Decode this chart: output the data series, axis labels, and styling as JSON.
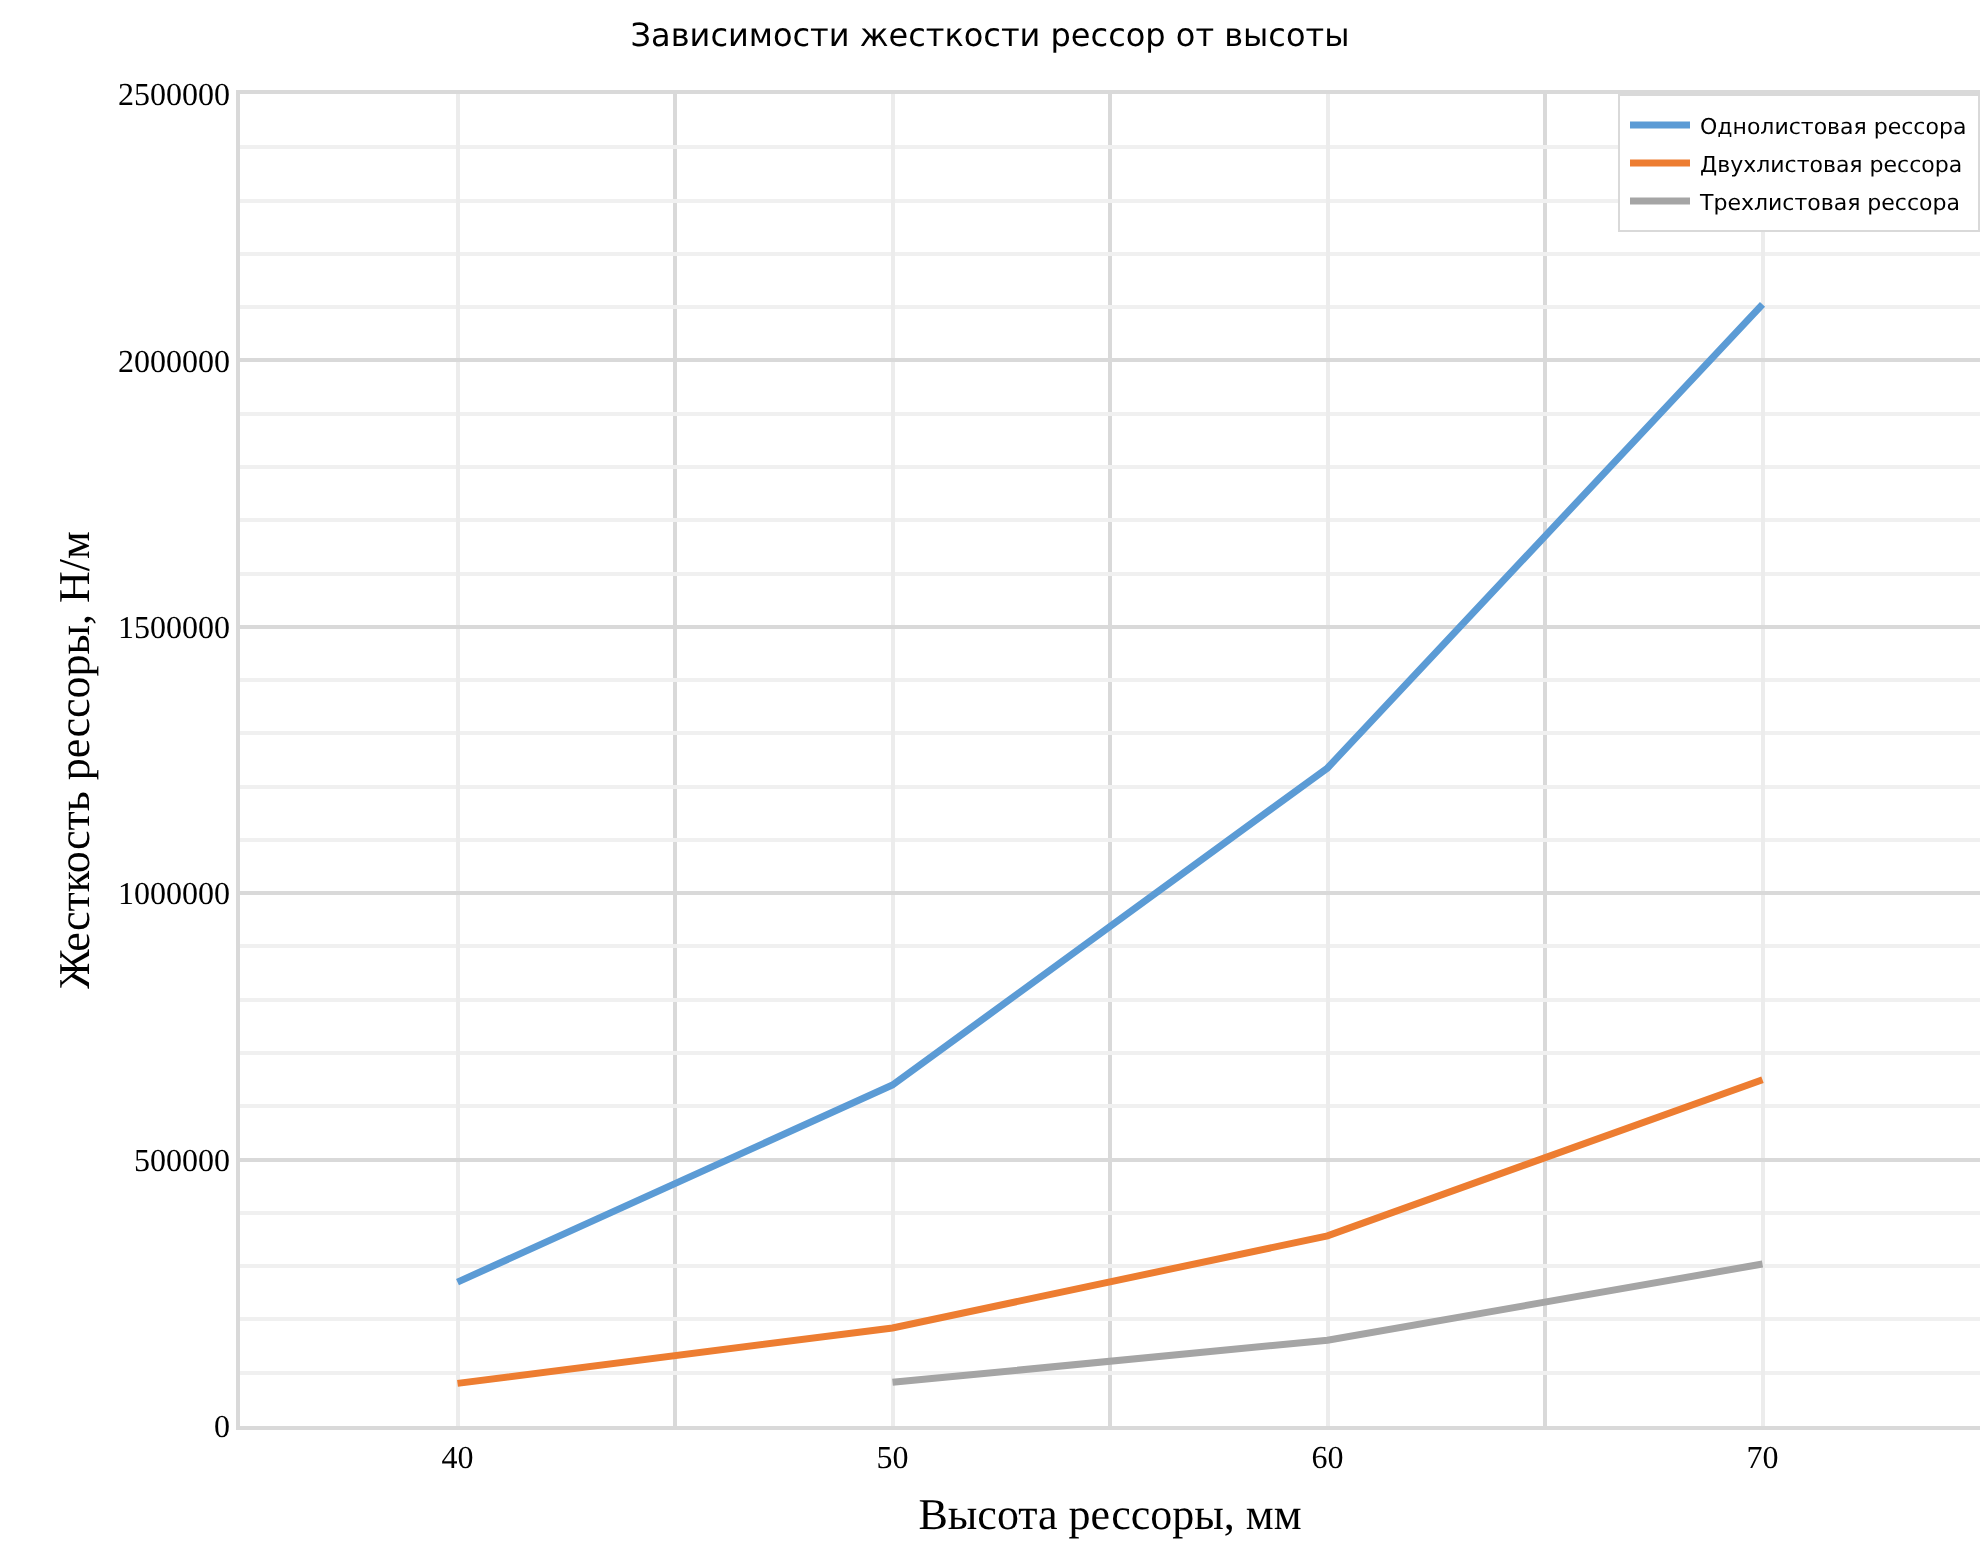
{
  "chart_data": {
    "type": "line",
    "title": "Зависимости жесткости рессор от высоты",
    "xlabel": "Высота рессоры, мм",
    "ylabel": "Жесткость рессоры, Н/м",
    "x": [
      40,
      50,
      60,
      70
    ],
    "series": [
      {
        "name": "Однолистовая рессора",
        "color": "#5b9bd5",
        "values": [
          270000,
          640000,
          1235000,
          2105000
        ]
      },
      {
        "name": "Двухлистовая рессора",
        "color": "#ed7d31",
        "values": [
          80000,
          184000,
          357000,
          650000
        ]
      },
      {
        "name": "Трехлистовая рессора",
        "color": "#a5a5a5",
        "values": [
          null,
          82000,
          161000,
          304000
        ]
      }
    ],
    "xlim": [
      35,
      75
    ],
    "xticks": [
      40,
      50,
      60,
      70
    ],
    "ylim": [
      0,
      2500000
    ],
    "yticks": [
      0,
      500000,
      1000000,
      1500000,
      2000000,
      2500000
    ],
    "grid": true,
    "legend": "top right",
    "marker": "none",
    "line_style": "solid"
  }
}
